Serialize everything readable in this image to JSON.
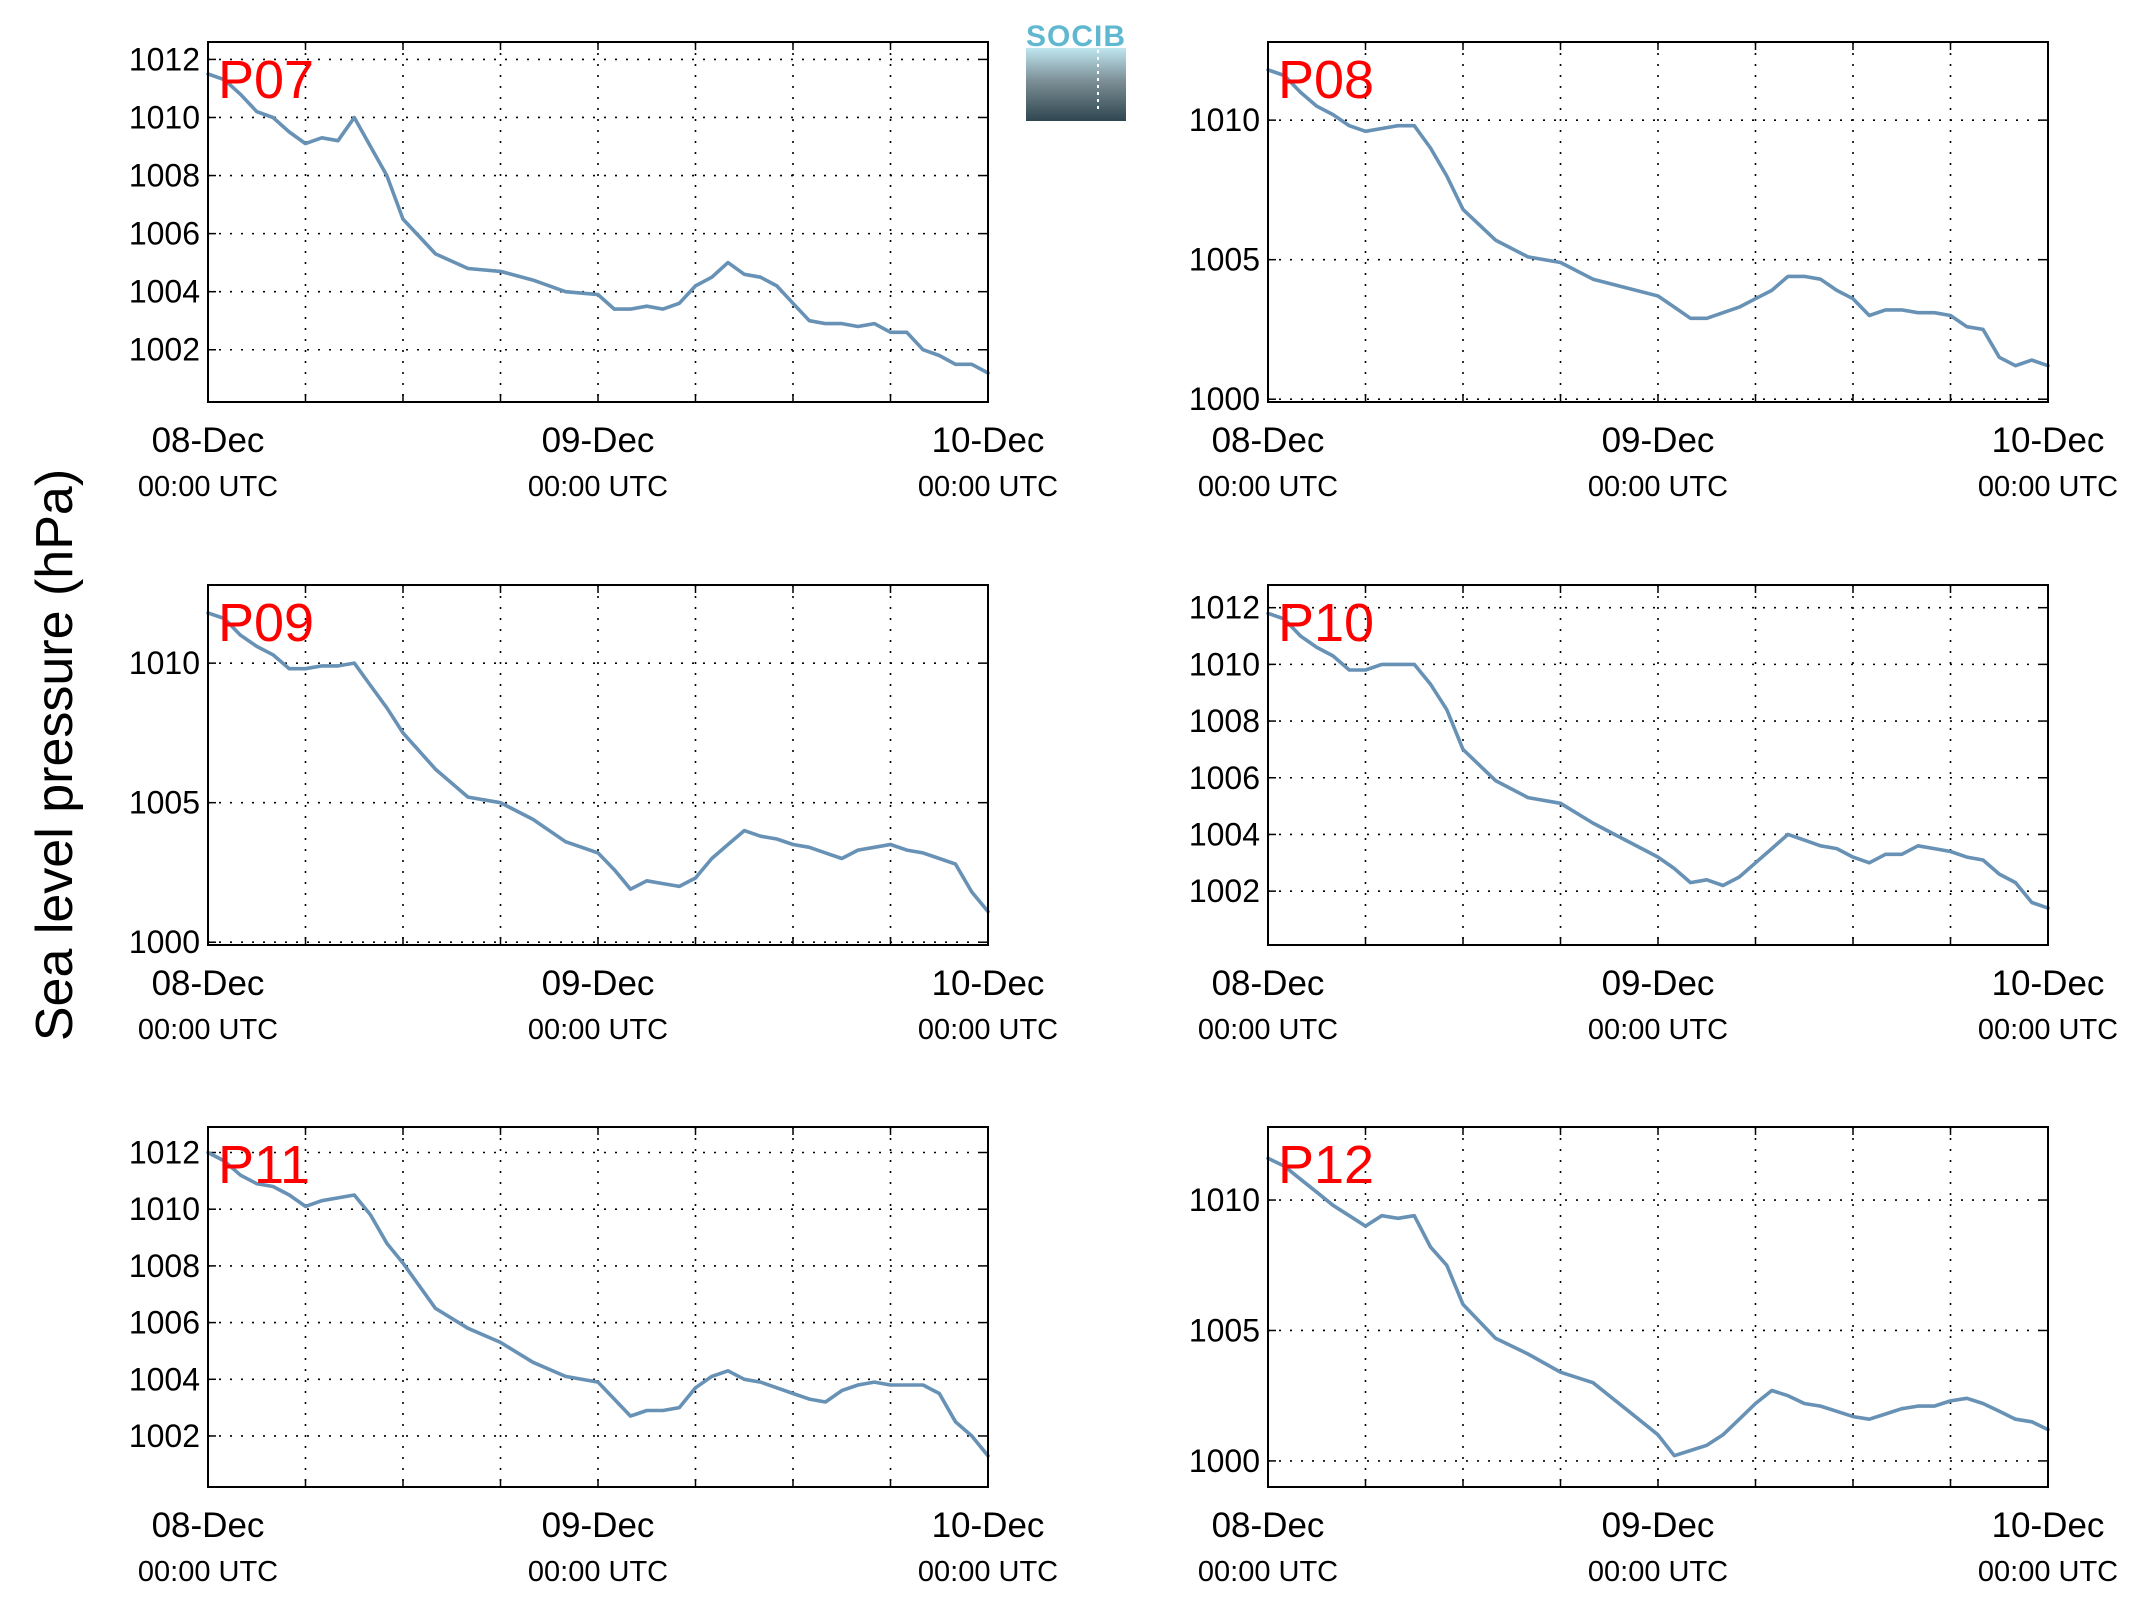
{
  "figure": {
    "ylabel": "Sea level pressure (hPa)",
    "logo_text": "SOCIB",
    "colors": {
      "line": "#6892b5",
      "panel_label": "#ff0000",
      "grid": "#000000",
      "logo_text": "#5fb8cf",
      "logo_dark": "#2f4650"
    }
  },
  "chart_data": [
    {
      "type": "line",
      "panel": "P07",
      "ylim": [
        1000.2,
        1012.6
      ],
      "yticks": [
        1002,
        1004,
        1006,
        1008,
        1010,
        1012
      ],
      "x_ticklabels": [
        [
          "08-Dec",
          "00:00 UTC"
        ],
        [
          "09-Dec",
          "00:00 UTC"
        ],
        [
          "10-Dec",
          "00:00 UTC"
        ]
      ],
      "xlim_hours": [
        0,
        48
      ],
      "grid": true,
      "x_hours": [
        0,
        1,
        2,
        3,
        4,
        5,
        6,
        7,
        8,
        9,
        10,
        11,
        12,
        14,
        16,
        18,
        20,
        22,
        24,
        25,
        26,
        27,
        28,
        29,
        30,
        31,
        32,
        33,
        34,
        35,
        36,
        37,
        38,
        39,
        40,
        41,
        42,
        43,
        44,
        45,
        46,
        47,
        48
      ],
      "values": [
        1011.5,
        1011.3,
        1010.8,
        1010.2,
        1010.0,
        1009.5,
        1009.1,
        1009.3,
        1009.2,
        1010.0,
        1009.0,
        1008.0,
        1006.5,
        1005.3,
        1004.8,
        1004.7,
        1004.4,
        1004.0,
        1003.9,
        1003.4,
        1003.4,
        1003.5,
        1003.4,
        1003.6,
        1004.2,
        1004.5,
        1005.0,
        1004.6,
        1004.5,
        1004.2,
        1003.6,
        1003.0,
        1002.9,
        1002.9,
        1002.8,
        1002.9,
        1002.6,
        1002.6,
        1002.0,
        1001.8,
        1001.5,
        1001.5,
        1001.2
      ]
    },
    {
      "type": "line",
      "panel": "P08",
      "ylim": [
        999.9,
        1012.8
      ],
      "yticks": [
        1000,
        1005,
        1010
      ],
      "x_ticklabels": [
        [
          "08-Dec",
          "00:00 UTC"
        ],
        [
          "09-Dec",
          "00:00 UTC"
        ],
        [
          "10-Dec",
          "00:00 UTC"
        ]
      ],
      "xlim_hours": [
        0,
        48
      ],
      "grid": true,
      "x_hours": [
        0,
        1,
        2,
        3,
        4,
        5,
        6,
        7,
        8,
        9,
        10,
        11,
        12,
        14,
        16,
        18,
        20,
        22,
        24,
        25,
        26,
        27,
        28,
        29,
        30,
        31,
        32,
        33,
        34,
        35,
        36,
        37,
        38,
        39,
        40,
        41,
        42,
        43,
        44,
        45,
        46,
        47,
        48
      ],
      "values": [
        1011.8,
        1011.6,
        1011.0,
        1010.5,
        1010.2,
        1009.8,
        1009.6,
        1009.7,
        1009.8,
        1009.8,
        1009.0,
        1008.0,
        1006.8,
        1005.7,
        1005.1,
        1004.9,
        1004.3,
        1004.0,
        1003.7,
        1003.3,
        1002.9,
        1002.9,
        1003.1,
        1003.3,
        1003.6,
        1003.9,
        1004.4,
        1004.4,
        1004.3,
        1003.9,
        1003.6,
        1003.0,
        1003.2,
        1003.2,
        1003.1,
        1003.1,
        1003.0,
        1002.6,
        1002.5,
        1001.5,
        1001.2,
        1001.4,
        1001.2
      ]
    },
    {
      "type": "line",
      "panel": "P09",
      "ylim": [
        999.9,
        1012.8
      ],
      "yticks": [
        1000,
        1005,
        1010
      ],
      "x_ticklabels": [
        [
          "08-Dec",
          "00:00 UTC"
        ],
        [
          "09-Dec",
          "00:00 UTC"
        ],
        [
          "10-Dec",
          "00:00 UTC"
        ]
      ],
      "xlim_hours": [
        0,
        48
      ],
      "grid": true,
      "x_hours": [
        0,
        1,
        2,
        3,
        4,
        5,
        6,
        7,
        8,
        9,
        10,
        11,
        12,
        14,
        16,
        18,
        20,
        22,
        24,
        25,
        26,
        27,
        28,
        29,
        30,
        31,
        32,
        33,
        34,
        35,
        36,
        37,
        38,
        39,
        40,
        41,
        42,
        43,
        44,
        45,
        46,
        47,
        48
      ],
      "values": [
        1011.8,
        1011.6,
        1011.0,
        1010.6,
        1010.3,
        1009.8,
        1009.8,
        1009.9,
        1009.9,
        1010.0,
        1009.2,
        1008.4,
        1007.5,
        1006.2,
        1005.2,
        1005.0,
        1004.4,
        1003.6,
        1003.2,
        1002.6,
        1001.9,
        1002.2,
        1002.1,
        1002.0,
        1002.3,
        1003.0,
        1003.5,
        1004.0,
        1003.8,
        1003.7,
        1003.5,
        1003.4,
        1003.2,
        1003.0,
        1003.3,
        1003.4,
        1003.5,
        1003.3,
        1003.2,
        1003.0,
        1002.8,
        1001.8,
        1001.1
      ]
    },
    {
      "type": "line",
      "panel": "P10",
      "ylim": [
        1000.1,
        1012.8
      ],
      "yticks": [
        1002,
        1004,
        1006,
        1008,
        1010,
        1012
      ],
      "x_ticklabels": [
        [
          "08-Dec",
          "00:00 UTC"
        ],
        [
          "09-Dec",
          "00:00 UTC"
        ],
        [
          "10-Dec",
          "00:00 UTC"
        ]
      ],
      "xlim_hours": [
        0,
        48
      ],
      "grid": true,
      "x_hours": [
        0,
        1,
        2,
        3,
        4,
        5,
        6,
        7,
        8,
        9,
        10,
        11,
        12,
        14,
        16,
        18,
        20,
        22,
        24,
        25,
        26,
        27,
        28,
        29,
        30,
        31,
        32,
        33,
        34,
        35,
        36,
        37,
        38,
        39,
        40,
        41,
        42,
        43,
        44,
        45,
        46,
        47,
        48
      ],
      "values": [
        1011.8,
        1011.6,
        1011.0,
        1010.6,
        1010.3,
        1009.8,
        1009.8,
        1010.0,
        1010.0,
        1010.0,
        1009.3,
        1008.4,
        1007.0,
        1005.9,
        1005.3,
        1005.1,
        1004.4,
        1003.8,
        1003.2,
        1002.8,
        1002.3,
        1002.4,
        1002.2,
        1002.5,
        1003.0,
        1003.5,
        1004.0,
        1003.8,
        1003.6,
        1003.5,
        1003.2,
        1003.0,
        1003.3,
        1003.3,
        1003.6,
        1003.5,
        1003.4,
        1003.2,
        1003.1,
        1002.6,
        1002.3,
        1001.6,
        1001.4
      ]
    },
    {
      "type": "line",
      "panel": "P11",
      "ylim": [
        1000.2,
        1012.9
      ],
      "yticks": [
        1002,
        1004,
        1006,
        1008,
        1010,
        1012
      ],
      "x_ticklabels": [
        [
          "08-Dec",
          "00:00 UTC"
        ],
        [
          "09-Dec",
          "00:00 UTC"
        ],
        [
          "10-Dec",
          "00:00 UTC"
        ]
      ],
      "xlim_hours": [
        0,
        48
      ],
      "grid": true,
      "x_hours": [
        0,
        1,
        2,
        3,
        4,
        5,
        6,
        7,
        8,
        9,
        10,
        11,
        12,
        14,
        16,
        18,
        20,
        22,
        24,
        25,
        26,
        27,
        28,
        29,
        30,
        31,
        32,
        33,
        34,
        35,
        36,
        37,
        38,
        39,
        40,
        41,
        42,
        43,
        44,
        45,
        46,
        47,
        48
      ],
      "values": [
        1012.0,
        1011.7,
        1011.2,
        1010.9,
        1010.8,
        1010.5,
        1010.1,
        1010.3,
        1010.4,
        1010.5,
        1009.8,
        1008.8,
        1008.1,
        1006.5,
        1005.8,
        1005.3,
        1004.6,
        1004.1,
        1003.9,
        1003.3,
        1002.7,
        1002.9,
        1002.9,
        1003.0,
        1003.7,
        1004.1,
        1004.3,
        1004.0,
        1003.9,
        1003.7,
        1003.5,
        1003.3,
        1003.2,
        1003.6,
        1003.8,
        1003.9,
        1003.8,
        1003.8,
        1003.8,
        1003.5,
        1002.5,
        1002.0,
        1001.3
      ]
    },
    {
      "type": "line",
      "panel": "P12",
      "ylim": [
        999.0,
        1012.8
      ],
      "yticks": [
        1000,
        1005,
        1010
      ],
      "x_ticklabels": [
        [
          "08-Dec",
          "00:00 UTC"
        ],
        [
          "09-Dec",
          "00:00 UTC"
        ],
        [
          "10-Dec",
          "00:00 UTC"
        ]
      ],
      "xlim_hours": [
        0,
        48
      ],
      "grid": true,
      "x_hours": [
        0,
        1,
        2,
        3,
        4,
        5,
        6,
        7,
        8,
        9,
        10,
        11,
        12,
        14,
        16,
        18,
        20,
        22,
        24,
        25,
        26,
        27,
        28,
        29,
        30,
        31,
        32,
        33,
        34,
        35,
        36,
        37,
        38,
        39,
        40,
        41,
        42,
        43,
        44,
        45,
        46,
        47,
        48
      ],
      "values": [
        1011.6,
        1011.3,
        1010.8,
        1010.3,
        1009.8,
        1009.4,
        1009.0,
        1009.4,
        1009.3,
        1009.4,
        1008.2,
        1007.5,
        1006.0,
        1004.7,
        1004.1,
        1003.4,
        1003.0,
        1002.0,
        1001.0,
        1000.2,
        1000.4,
        1000.6,
        1001.0,
        1001.6,
        1002.2,
        1002.7,
        1002.5,
        1002.2,
        1002.1,
        1001.9,
        1001.7,
        1001.6,
        1001.8,
        1002.0,
        1002.1,
        1002.1,
        1002.3,
        1002.4,
        1002.2,
        1001.9,
        1001.6,
        1001.5,
        1001.2
      ]
    }
  ]
}
